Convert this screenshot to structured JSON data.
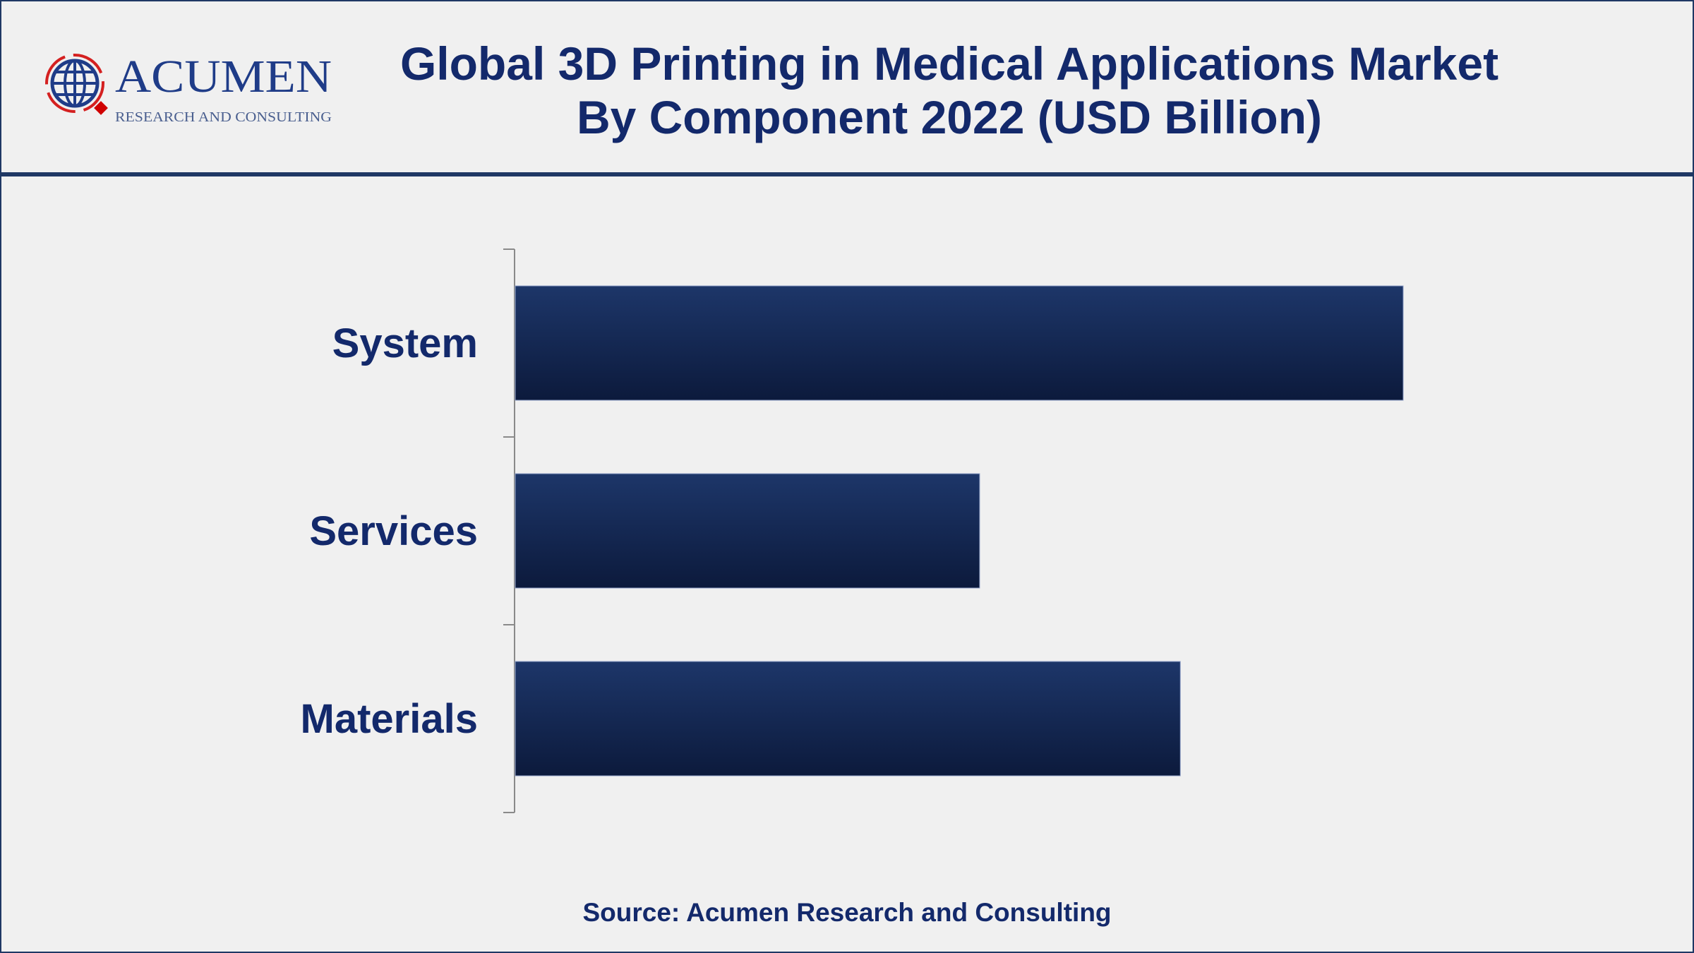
{
  "logo": {
    "name": "ACUMEN",
    "tagline": "RESEARCH AND CONSULTING"
  },
  "title": {
    "line1": "Global 3D Printing in Medical Applications Market",
    "line2": "By Component 2022 (USD Billion)"
  },
  "source": "Source: Acumen Research and Consulting",
  "colors": {
    "bar_top": "#1d3669",
    "bar_bottom": "#0c1a3c",
    "text": "#13296b",
    "frame": "#1f3864"
  },
  "chart_data": {
    "type": "bar",
    "orientation": "horizontal",
    "title": "Global 3D Printing in Medical Applications Market By Component 2022 (USD Billion)",
    "categories": [
      "System",
      "Services",
      "Materials"
    ],
    "values": [
      100,
      52.3,
      74.9
    ],
    "value_axis_shown": false,
    "grid": false,
    "xlim": [
      0,
      100
    ]
  }
}
